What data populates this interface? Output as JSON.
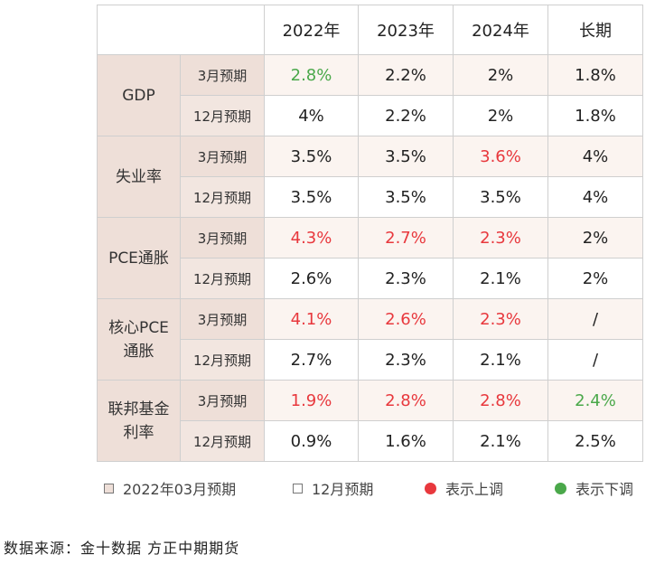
{
  "colors": {
    "up": "#e8383d",
    "down": "#4aa84a",
    "tint": "#eedfd8"
  },
  "table": {
    "years": [
      "2022年",
      "2023年",
      "2024年",
      "长期"
    ],
    "groups": [
      {
        "name": "GDP",
        "rows": [
          {
            "label": "3月预期",
            "values": [
              {
                "text": "2.8%",
                "trend": "down"
              },
              {
                "text": "2.2%",
                "trend": "none"
              },
              {
                "text": "2%",
                "trend": "none"
              },
              {
                "text": "1.8%",
                "trend": "none"
              }
            ]
          },
          {
            "label": "12月预期",
            "values": [
              {
                "text": "4%",
                "trend": "none"
              },
              {
                "text": "2.2%",
                "trend": "none"
              },
              {
                "text": "2%",
                "trend": "none"
              },
              {
                "text": "1.8%",
                "trend": "none"
              }
            ]
          }
        ]
      },
      {
        "name": "失业率",
        "rows": [
          {
            "label": "3月预期",
            "values": [
              {
                "text": "3.5%",
                "trend": "none"
              },
              {
                "text": "3.5%",
                "trend": "none"
              },
              {
                "text": "3.6%",
                "trend": "up"
              },
              {
                "text": "4%",
                "trend": "none"
              }
            ]
          },
          {
            "label": "12月预期",
            "values": [
              {
                "text": "3.5%",
                "trend": "none"
              },
              {
                "text": "3.5%",
                "trend": "none"
              },
              {
                "text": "3.5%",
                "trend": "none"
              },
              {
                "text": "4%",
                "trend": "none"
              }
            ]
          }
        ]
      },
      {
        "name": "PCE通胀",
        "rows": [
          {
            "label": "3月预期",
            "values": [
              {
                "text": "4.3%",
                "trend": "up"
              },
              {
                "text": "2.7%",
                "trend": "up"
              },
              {
                "text": "2.3%",
                "trend": "up"
              },
              {
                "text": "2%",
                "trend": "none"
              }
            ]
          },
          {
            "label": "12月预期",
            "values": [
              {
                "text": "2.6%",
                "trend": "none"
              },
              {
                "text": "2.3%",
                "trend": "none"
              },
              {
                "text": "2.1%",
                "trend": "none"
              },
              {
                "text": "2%",
                "trend": "none"
              }
            ]
          }
        ]
      },
      {
        "name": "核心PCE\n通胀",
        "rows": [
          {
            "label": "3月预期",
            "values": [
              {
                "text": "4.1%",
                "trend": "up"
              },
              {
                "text": "2.6%",
                "trend": "up"
              },
              {
                "text": "2.3%",
                "trend": "up"
              },
              {
                "text": "/",
                "trend": "none"
              }
            ]
          },
          {
            "label": "12月预期",
            "values": [
              {
                "text": "2.7%",
                "trend": "none"
              },
              {
                "text": "2.3%",
                "trend": "none"
              },
              {
                "text": "2.1%",
                "trend": "none"
              },
              {
                "text": "/",
                "trend": "none"
              }
            ]
          }
        ]
      },
      {
        "name": "联邦基金\n利率",
        "rows": [
          {
            "label": "3月预期",
            "values": [
              {
                "text": "1.9%",
                "trend": "up"
              },
              {
                "text": "2.8%",
                "trend": "up"
              },
              {
                "text": "2.8%",
                "trend": "up"
              },
              {
                "text": "2.4%",
                "trend": "down"
              }
            ]
          },
          {
            "label": "12月预期",
            "values": [
              {
                "text": "0.9%",
                "trend": "none"
              },
              {
                "text": "1.6%",
                "trend": "none"
              },
              {
                "text": "2.1%",
                "trend": "none"
              },
              {
                "text": "2.5%",
                "trend": "none"
              }
            ]
          }
        ]
      }
    ]
  },
  "legend": {
    "items": [
      {
        "marker": "square-filled",
        "label": "2022年03月预期"
      },
      {
        "marker": "square-white",
        "label": "12月预期"
      },
      {
        "marker": "dot-red",
        "label": "表示上调"
      },
      {
        "marker": "dot-green",
        "label": "表示下调"
      }
    ]
  },
  "source": "数据来源：金十数据 方正中期期货"
}
